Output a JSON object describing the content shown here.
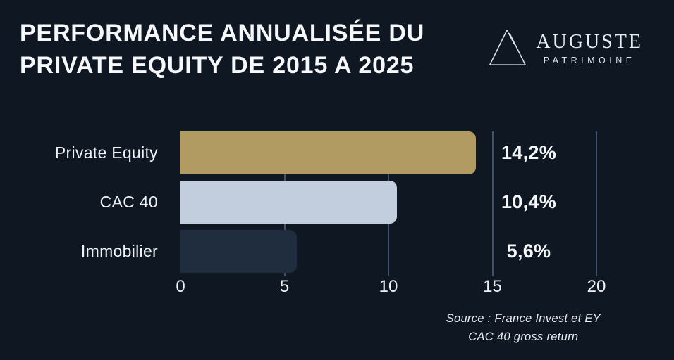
{
  "header": {
    "title_lines": [
      "PERFORMANCE ANNUALISÉE DU",
      "PRIVATE EQUITY DE 2015 A 2025"
    ]
  },
  "logo": {
    "name": "AUGUSTE",
    "subtitle": "PATRIMOINE",
    "mark": "triangle-outline-icon"
  },
  "chart_data": {
    "type": "bar",
    "orientation": "horizontal",
    "title": "PERFORMANCE ANNUALISÉE DU PRIVATE EQUITY DE 2015 A 2025",
    "categories": [
      "Private Equity",
      "CAC 40",
      "Immobilier"
    ],
    "values": [
      14.2,
      10.4,
      5.6
    ],
    "value_labels": [
      "14,2%",
      "10,4%",
      "5,6%"
    ],
    "bar_colors": [
      "#b29b63",
      "#c2cdde",
      "#1f2d3f"
    ],
    "xlim": [
      0,
      20
    ],
    "x_ticks": [
      0,
      5,
      10,
      15,
      20
    ],
    "x_tick_labels": [
      "0",
      "5",
      "10",
      "15",
      "20"
    ],
    "grid": true,
    "gridline_ticks": [
      5,
      10,
      15,
      20
    ],
    "legend": "none"
  },
  "footer": {
    "source_lines": [
      "Source : France Invest et EY",
      "CAC 40 gross return"
    ]
  },
  "colors": {
    "background": "#0e1722",
    "gridline": "#43526a",
    "title_text": "#f6f8fb",
    "gold": "#b29b63",
    "light_blue": "#c2cdde",
    "dark_navy_bar": "#1f2d3f"
  }
}
